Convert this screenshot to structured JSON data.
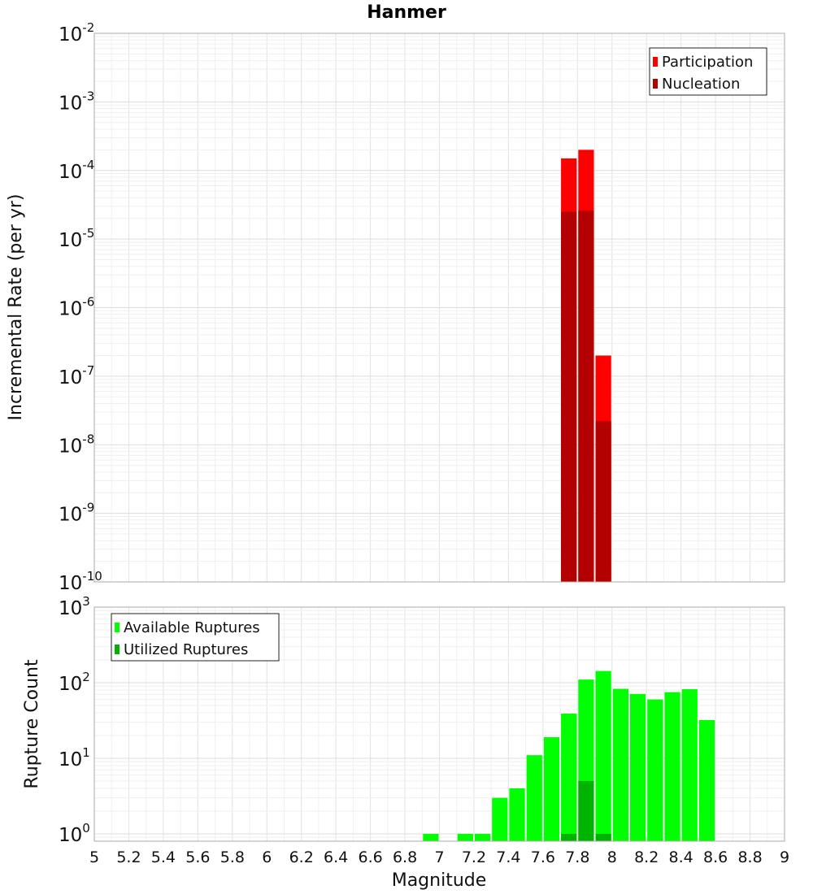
{
  "chart_data": {
    "title": "Hanmer",
    "xlabel": "Magnitude",
    "xlim": [
      5,
      9
    ],
    "x_ticks": [
      "5",
      "5.2",
      "5.4",
      "5.6",
      "5.8",
      "6",
      "6.2",
      "6.4",
      "6.6",
      "6.8",
      "7",
      "7.2",
      "7.4",
      "7.6",
      "7.8",
      "8",
      "8.2",
      "8.4",
      "8.6",
      "8.8",
      "9"
    ],
    "bin_width": 0.1,
    "grid": true,
    "panels": [
      {
        "type": "bar",
        "scale": "log",
        "ylabel": "Incremental Rate (per yr)",
        "ylim": [
          1e-10,
          0.01
        ],
        "y_ticks": [
          {
            "exp": -2
          },
          {
            "exp": -3
          },
          {
            "exp": -4
          },
          {
            "exp": -5
          },
          {
            "exp": -6
          },
          {
            "exp": -7
          },
          {
            "exp": -8
          },
          {
            "exp": -9
          },
          {
            "exp": -10
          }
        ],
        "y_tick_base": "10",
        "legend_position": "top-right",
        "series": [
          {
            "name": "Participation",
            "color": "#ff0000",
            "points": [
              {
                "x": 7.75,
                "y": 0.00015
              },
              {
                "x": 7.85,
                "y": 0.0002
              },
              {
                "x": 7.95,
                "y": 2e-07
              }
            ]
          },
          {
            "name": "Nucleation",
            "color": "#b30000",
            "points": [
              {
                "x": 7.75,
                "y": 2.5e-05
              },
              {
                "x": 7.85,
                "y": 2.6e-05
              },
              {
                "x": 7.95,
                "y": 2.2e-08
              }
            ]
          }
        ]
      },
      {
        "type": "bar",
        "scale": "log",
        "ylabel": "Rupture Count",
        "ylim": [
          0.8,
          1000
        ],
        "y_ticks": [
          {
            "exp": 3
          },
          {
            "exp": 2
          },
          {
            "exp": 1
          },
          {
            "exp": 0
          }
        ],
        "y_tick_base": "10",
        "legend_position": "top-left",
        "series": [
          {
            "name": "Available Ruptures",
            "color": "#00ff00",
            "points": [
              {
                "x": 6.95,
                "y": 1
              },
              {
                "x": 7.15,
                "y": 1
              },
              {
                "x": 7.25,
                "y": 1
              },
              {
                "x": 7.35,
                "y": 3
              },
              {
                "x": 7.45,
                "y": 4
              },
              {
                "x": 7.55,
                "y": 11
              },
              {
                "x": 7.65,
                "y": 19
              },
              {
                "x": 7.75,
                "y": 39
              },
              {
                "x": 7.85,
                "y": 110
              },
              {
                "x": 7.95,
                "y": 143
              },
              {
                "x": 8.05,
                "y": 83
              },
              {
                "x": 8.15,
                "y": 71
              },
              {
                "x": 8.25,
                "y": 60
              },
              {
                "x": 8.35,
                "y": 75
              },
              {
                "x": 8.45,
                "y": 82
              },
              {
                "x": 8.55,
                "y": 32
              }
            ]
          },
          {
            "name": "Utilized Ruptures",
            "color": "#00b300",
            "points": [
              {
                "x": 7.75,
                "y": 1
              },
              {
                "x": 7.85,
                "y": 5
              },
              {
                "x": 7.95,
                "y": 1
              }
            ]
          }
        ]
      }
    ]
  }
}
